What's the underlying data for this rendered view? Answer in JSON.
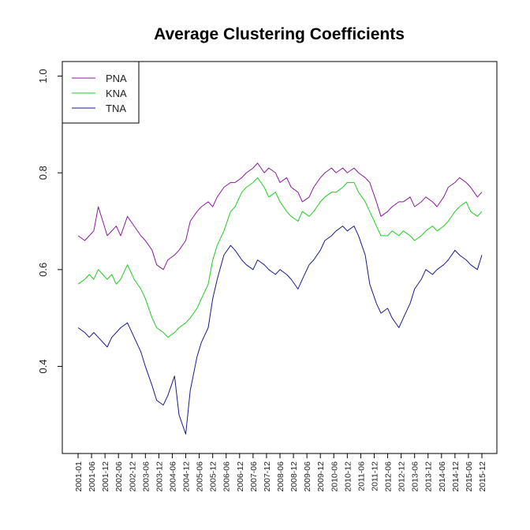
{
  "chart_data": {
    "type": "line",
    "title": "Average Clustering Coefficients",
    "xlabel": "",
    "ylabel": "",
    "ylim": [
      0.22,
      1.03
    ],
    "yticks": [
      0.4,
      0.6,
      0.8,
      1.0
    ],
    "ytick_labels": [
      "0.4",
      "0.6",
      "0.8",
      "1.0"
    ],
    "x_index_range": [
      0,
      180
    ],
    "xtick_labels": [
      "2001-01",
      "2001-06",
      "2001-12",
      "2002-06",
      "2002-12",
      "2003-06",
      "2003-12",
      "2004-06",
      "2004-12",
      "2005-06",
      "2005-12",
      "2006-06",
      "2006-12",
      "2007-06",
      "2007-12",
      "2008-06",
      "2008-12",
      "2009-06",
      "2009-12",
      "2010-06",
      "2010-12",
      "2011-06",
      "2011-12",
      "2012-06",
      "2012-12",
      "2013-06",
      "2013-12",
      "2014-06",
      "2014-12",
      "2015-06",
      "2015-12"
    ],
    "legend_position": "top-left",
    "series": [
      {
        "name": "PNA",
        "color": "#8B1A9C",
        "x": [
          0,
          3,
          5,
          7,
          9,
          11,
          13,
          15,
          17,
          19,
          22,
          25,
          28,
          30,
          33,
          35,
          38,
          40,
          43,
          45,
          48,
          50,
          53,
          55,
          58,
          60,
          62,
          65,
          68,
          70,
          73,
          75,
          78,
          80,
          83,
          85,
          88,
          90,
          93,
          95,
          98,
          100,
          103,
          105,
          108,
          110,
          113,
          115,
          118,
          120,
          123,
          125,
          128,
          130,
          133,
          135,
          138,
          140,
          143,
          145,
          148,
          150,
          153,
          155,
          158,
          160,
          163,
          165,
          168,
          170,
          173,
          175,
          178,
          180
        ],
        "values": [
          0.67,
          0.66,
          0.67,
          0.68,
          0.73,
          0.7,
          0.67,
          0.68,
          0.69,
          0.67,
          0.71,
          0.69,
          0.67,
          0.66,
          0.64,
          0.61,
          0.6,
          0.62,
          0.63,
          0.64,
          0.66,
          0.7,
          0.72,
          0.73,
          0.74,
          0.73,
          0.75,
          0.77,
          0.78,
          0.78,
          0.79,
          0.8,
          0.81,
          0.82,
          0.8,
          0.81,
          0.8,
          0.78,
          0.79,
          0.77,
          0.76,
          0.74,
          0.75,
          0.77,
          0.79,
          0.8,
          0.81,
          0.8,
          0.81,
          0.8,
          0.81,
          0.8,
          0.79,
          0.78,
          0.74,
          0.71,
          0.72,
          0.73,
          0.74,
          0.74,
          0.75,
          0.73,
          0.74,
          0.75,
          0.74,
          0.73,
          0.75,
          0.77,
          0.78,
          0.79,
          0.78,
          0.77,
          0.75,
          0.76
        ]
      },
      {
        "name": "KNA",
        "color": "#22CC22",
        "x": [
          0,
          3,
          5,
          7,
          9,
          11,
          13,
          15,
          17,
          19,
          22,
          25,
          28,
          30,
          33,
          35,
          38,
          40,
          43,
          45,
          48,
          50,
          53,
          55,
          58,
          60,
          62,
          65,
          68,
          70,
          73,
          75,
          78,
          80,
          83,
          85,
          88,
          90,
          93,
          95,
          98,
          100,
          103,
          105,
          108,
          110,
          113,
          115,
          118,
          120,
          123,
          125,
          128,
          130,
          133,
          135,
          138,
          140,
          143,
          145,
          148,
          150,
          153,
          155,
          158,
          160,
          163,
          165,
          168,
          170,
          173,
          175,
          178,
          180
        ],
        "values": [
          0.57,
          0.58,
          0.59,
          0.58,
          0.6,
          0.59,
          0.58,
          0.59,
          0.57,
          0.58,
          0.61,
          0.58,
          0.56,
          0.54,
          0.5,
          0.48,
          0.47,
          0.46,
          0.47,
          0.48,
          0.49,
          0.5,
          0.52,
          0.54,
          0.57,
          0.62,
          0.65,
          0.68,
          0.72,
          0.73,
          0.76,
          0.77,
          0.78,
          0.79,
          0.77,
          0.75,
          0.76,
          0.74,
          0.72,
          0.71,
          0.7,
          0.72,
          0.71,
          0.72,
          0.74,
          0.75,
          0.76,
          0.76,
          0.77,
          0.78,
          0.78,
          0.76,
          0.74,
          0.72,
          0.69,
          0.67,
          0.67,
          0.68,
          0.67,
          0.68,
          0.67,
          0.66,
          0.67,
          0.68,
          0.69,
          0.68,
          0.69,
          0.7,
          0.72,
          0.73,
          0.74,
          0.72,
          0.71,
          0.72
        ]
      },
      {
        "name": "TNA",
        "color": "#1A1A8C",
        "x": [
          0,
          3,
          5,
          7,
          9,
          11,
          13,
          15,
          17,
          19,
          22,
          25,
          28,
          30,
          33,
          35,
          38,
          40,
          43,
          45,
          48,
          50,
          53,
          55,
          58,
          60,
          62,
          65,
          68,
          70,
          73,
          75,
          78,
          80,
          83,
          85,
          88,
          90,
          93,
          95,
          98,
          100,
          103,
          105,
          108,
          110,
          113,
          115,
          118,
          120,
          123,
          125,
          128,
          130,
          133,
          135,
          138,
          140,
          143,
          145,
          148,
          150,
          153,
          155,
          158,
          160,
          163,
          165,
          168,
          170,
          173,
          175,
          178,
          180
        ],
        "values": [
          0.48,
          0.47,
          0.46,
          0.47,
          0.46,
          0.45,
          0.44,
          0.46,
          0.47,
          0.48,
          0.49,
          0.46,
          0.43,
          0.4,
          0.36,
          0.33,
          0.32,
          0.34,
          0.38,
          0.3,
          0.26,
          0.35,
          0.42,
          0.45,
          0.48,
          0.54,
          0.58,
          0.63,
          0.65,
          0.64,
          0.62,
          0.61,
          0.6,
          0.62,
          0.61,
          0.6,
          0.59,
          0.6,
          0.59,
          0.58,
          0.56,
          0.58,
          0.61,
          0.62,
          0.64,
          0.66,
          0.67,
          0.68,
          0.69,
          0.68,
          0.69,
          0.67,
          0.63,
          0.57,
          0.53,
          0.51,
          0.52,
          0.5,
          0.48,
          0.5,
          0.53,
          0.56,
          0.58,
          0.6,
          0.59,
          0.6,
          0.61,
          0.62,
          0.64,
          0.63,
          0.62,
          0.61,
          0.6,
          0.63
        ]
      }
    ]
  }
}
